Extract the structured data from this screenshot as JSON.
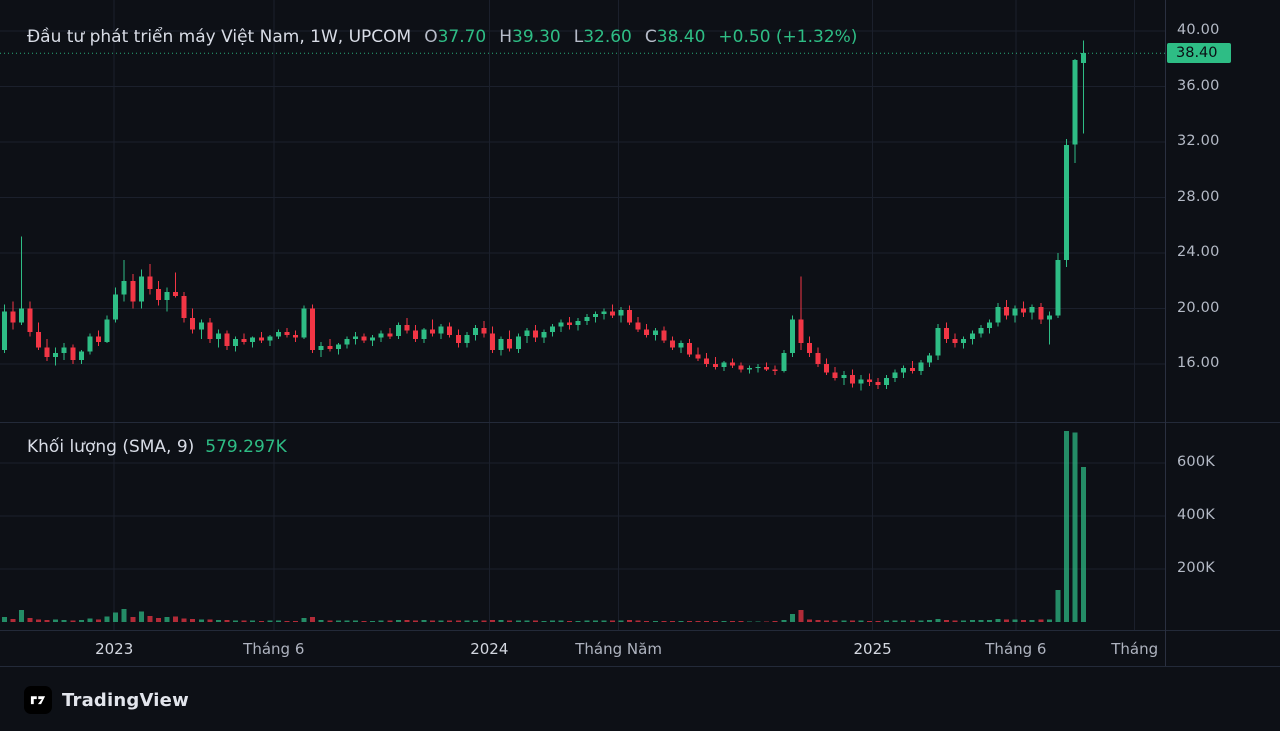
{
  "colors": {
    "up": "#2ebd85",
    "down": "#f23645",
    "grid": "#1b202c",
    "bg": "#0d1016"
  },
  "legend": {
    "title": "Đầu tư phát triển máy Việt Nam, 1W, UPCOM",
    "o_label": "O",
    "o": "37.70",
    "h_label": "H",
    "h": "39.30",
    "l_label": "L",
    "l": "32.60",
    "c_label": "C",
    "c": "38.40",
    "change": "+0.50 (+1.32%)"
  },
  "volume_legend": {
    "label": "Khối lượng (SMA, 9)",
    "value": "579.297K"
  },
  "price_axis": {
    "ticks": [
      "40.00",
      "36.00",
      "32.00",
      "28.00",
      "24.00",
      "20.00",
      "16.00"
    ],
    "last_price_label": "38.40"
  },
  "volume_axis": {
    "ticks": [
      {
        "label": "600K",
        "v": 600
      },
      {
        "label": "400K",
        "v": 400
      },
      {
        "label": "200K",
        "v": 200
      }
    ]
  },
  "time_axis": {
    "ticks": [
      {
        "label": "2023",
        "pos": 0.098,
        "major": true
      },
      {
        "label": "Tháng 6",
        "pos": 0.235,
        "major": false
      },
      {
        "label": "2024",
        "pos": 0.42,
        "major": true
      },
      {
        "label": "Tháng Năm",
        "pos": 0.531,
        "major": false
      },
      {
        "label": "2025",
        "pos": 0.749,
        "major": true
      },
      {
        "label": "Tháng 6",
        "pos": 0.872,
        "major": false
      },
      {
        "label": "Tháng",
        "pos": 0.974,
        "major": false
      }
    ]
  },
  "footer": {
    "brand": "TradingView"
  },
  "chart_data": {
    "type": "candlestick+volume",
    "title": "Đầu tư phát triển máy Việt Nam",
    "interval": "1W",
    "exchange": "UPCOM",
    "ohlc_last": {
      "o": 37.7,
      "h": 39.3,
      "l": 32.6,
      "c": 38.4,
      "change": 0.5,
      "change_pct": 1.32
    },
    "volume_sma_label": "579.297K",
    "price_axis_ticks": [
      40,
      36,
      32,
      28,
      24,
      20,
      16
    ],
    "volume_axis_ticks_k": [
      600,
      400,
      200
    ],
    "price_range": [
      14,
      40.5
    ],
    "volume_unit": "K",
    "right_gap": 9,
    "last_price": 38.4,
    "candles_format": [
      "open",
      "high",
      "low",
      "close",
      "volume_k"
    ],
    "candles": [
      [
        17.0,
        20.3,
        16.8,
        19.8,
        18
      ],
      [
        19.8,
        20.5,
        18.5,
        19.0,
        12
      ],
      [
        19.0,
        25.2,
        18.8,
        20.0,
        45
      ],
      [
        20.0,
        20.5,
        18.0,
        18.3,
        15
      ],
      [
        18.3,
        19.0,
        17.0,
        17.2,
        10
      ],
      [
        17.2,
        17.8,
        16.2,
        16.5,
        8
      ],
      [
        16.5,
        17.2,
        15.9,
        16.8,
        9
      ],
      [
        16.8,
        17.5,
        16.3,
        17.2,
        7
      ],
      [
        17.2,
        17.4,
        16.0,
        16.3,
        6
      ],
      [
        16.3,
        17.0,
        16.0,
        16.9,
        8
      ],
      [
        16.9,
        18.2,
        16.7,
        18.0,
        14
      ],
      [
        18.0,
        18.4,
        17.3,
        17.6,
        9
      ],
      [
        17.6,
        19.5,
        17.5,
        19.2,
        20
      ],
      [
        19.2,
        21.5,
        19.0,
        21.0,
        35
      ],
      [
        21.0,
        23.5,
        20.5,
        22.0,
        50
      ],
      [
        22.0,
        22.5,
        20.0,
        20.5,
        18
      ],
      [
        20.5,
        22.8,
        20.0,
        22.3,
        40
      ],
      [
        22.3,
        23.2,
        21.0,
        21.4,
        22
      ],
      [
        21.4,
        22.0,
        20.2,
        20.6,
        15
      ],
      [
        20.6,
        21.5,
        19.8,
        21.2,
        18
      ],
      [
        21.2,
        22.6,
        20.8,
        20.9,
        20
      ],
      [
        20.9,
        21.2,
        19.0,
        19.3,
        14
      ],
      [
        19.3,
        20.0,
        18.2,
        18.5,
        12
      ],
      [
        18.5,
        19.2,
        17.8,
        19.0,
        10
      ],
      [
        19.0,
        19.3,
        17.5,
        17.8,
        9
      ],
      [
        17.8,
        18.5,
        17.2,
        18.2,
        8
      ],
      [
        18.2,
        18.4,
        17.0,
        17.3,
        7
      ],
      [
        17.3,
        18.0,
        16.9,
        17.8,
        6
      ],
      [
        17.8,
        18.2,
        17.4,
        17.6,
        5
      ],
      [
        17.6,
        18.0,
        17.2,
        17.9,
        5
      ],
      [
        17.9,
        18.3,
        17.5,
        17.7,
        4
      ],
      [
        17.7,
        18.1,
        17.3,
        18.0,
        5
      ],
      [
        18.0,
        18.5,
        17.8,
        18.3,
        6
      ],
      [
        18.3,
        18.6,
        17.9,
        18.1,
        4
      ],
      [
        18.1,
        18.4,
        17.6,
        17.9,
        4
      ],
      [
        17.9,
        20.2,
        17.8,
        20.0,
        16
      ],
      [
        20.0,
        20.3,
        16.8,
        17.0,
        18
      ],
      [
        17.0,
        17.6,
        16.5,
        17.3,
        7
      ],
      [
        17.3,
        17.8,
        16.9,
        17.1,
        5
      ],
      [
        17.1,
        17.5,
        16.7,
        17.4,
        5
      ],
      [
        17.4,
        18.0,
        17.1,
        17.8,
        6
      ],
      [
        17.8,
        18.3,
        17.4,
        18.0,
        5
      ],
      [
        18.0,
        18.2,
        17.5,
        17.7,
        4
      ],
      [
        17.7,
        18.1,
        17.3,
        17.9,
        4
      ],
      [
        17.9,
        18.4,
        17.6,
        18.2,
        5
      ],
      [
        18.2,
        18.6,
        17.8,
        18.0,
        5
      ],
      [
        18.0,
        19.0,
        17.8,
        18.8,
        8
      ],
      [
        18.8,
        19.3,
        18.2,
        18.4,
        7
      ],
      [
        18.4,
        18.8,
        17.6,
        17.8,
        6
      ],
      [
        17.8,
        18.6,
        17.5,
        18.5,
        7
      ],
      [
        18.5,
        19.2,
        18.0,
        18.2,
        6
      ],
      [
        18.2,
        18.9,
        17.8,
        18.7,
        6
      ],
      [
        18.7,
        19.0,
        17.9,
        18.1,
        5
      ],
      [
        18.1,
        18.5,
        17.2,
        17.5,
        6
      ],
      [
        17.5,
        18.3,
        17.2,
        18.1,
        5
      ],
      [
        18.1,
        18.8,
        17.7,
        18.6,
        6
      ],
      [
        18.6,
        19.1,
        17.9,
        18.2,
        5
      ],
      [
        18.2,
        18.7,
        16.8,
        17.0,
        8
      ],
      [
        17.0,
        18.0,
        16.6,
        17.8,
        7
      ],
      [
        17.8,
        18.4,
        16.9,
        17.1,
        6
      ],
      [
        17.1,
        18.2,
        16.8,
        18.0,
        6
      ],
      [
        18.0,
        18.6,
        17.5,
        18.4,
        5
      ],
      [
        18.4,
        18.8,
        17.6,
        17.9,
        5
      ],
      [
        17.9,
        18.5,
        17.5,
        18.3,
        4
      ],
      [
        18.3,
        18.9,
        18.0,
        18.7,
        5
      ],
      [
        18.7,
        19.2,
        18.3,
        19.0,
        5
      ],
      [
        19.0,
        19.4,
        18.5,
        18.8,
        4
      ],
      [
        18.8,
        19.3,
        18.4,
        19.1,
        4
      ],
      [
        19.1,
        19.6,
        18.8,
        19.4,
        5
      ],
      [
        19.4,
        19.8,
        19.0,
        19.6,
        5
      ],
      [
        19.6,
        20.0,
        19.2,
        19.8,
        6
      ],
      [
        19.8,
        20.3,
        19.3,
        19.5,
        6
      ],
      [
        19.5,
        20.1,
        19.0,
        19.9,
        5
      ],
      [
        19.9,
        20.2,
        18.8,
        19.0,
        7
      ],
      [
        19.0,
        19.4,
        18.3,
        18.5,
        5
      ],
      [
        18.5,
        18.9,
        17.9,
        18.1,
        4
      ],
      [
        18.1,
        18.6,
        17.7,
        18.4,
        4
      ],
      [
        18.4,
        18.7,
        17.5,
        17.7,
        4
      ],
      [
        17.7,
        18.0,
        17.0,
        17.2,
        4
      ],
      [
        17.2,
        17.7,
        16.8,
        17.5,
        3
      ],
      [
        17.5,
        17.8,
        16.5,
        16.7,
        4
      ],
      [
        16.7,
        17.2,
        16.2,
        16.4,
        3
      ],
      [
        16.4,
        16.8,
        15.8,
        16.0,
        4
      ],
      [
        16.0,
        16.5,
        15.6,
        15.8,
        3
      ],
      [
        15.8,
        16.2,
        15.5,
        16.1,
        3
      ],
      [
        16.1,
        16.4,
        15.7,
        15.9,
        3
      ],
      [
        15.9,
        16.1,
        15.4,
        15.6,
        3
      ],
      [
        15.6,
        15.9,
        15.3,
        15.7,
        2
      ],
      [
        15.7,
        16.0,
        15.4,
        15.8,
        2
      ],
      [
        15.8,
        16.1,
        15.5,
        15.6,
        2
      ],
      [
        15.6,
        15.9,
        15.2,
        15.5,
        3
      ],
      [
        15.5,
        17.0,
        15.4,
        16.8,
        8
      ],
      [
        16.8,
        19.5,
        16.5,
        19.2,
        30
      ],
      [
        19.2,
        22.3,
        17.0,
        17.5,
        45
      ],
      [
        17.5,
        18.0,
        16.5,
        16.8,
        10
      ],
      [
        16.8,
        17.2,
        15.8,
        16.0,
        8
      ],
      [
        16.0,
        16.4,
        15.2,
        15.4,
        6
      ],
      [
        15.4,
        15.8,
        14.8,
        15.0,
        5
      ],
      [
        15.0,
        15.5,
        14.5,
        15.2,
        5
      ],
      [
        15.2,
        15.6,
        14.3,
        14.6,
        6
      ],
      [
        14.6,
        15.2,
        14.1,
        14.9,
        5
      ],
      [
        14.9,
        15.3,
        14.4,
        14.7,
        4
      ],
      [
        14.7,
        15.0,
        14.2,
        14.5,
        4
      ],
      [
        14.5,
        15.2,
        14.2,
        15.0,
        5
      ],
      [
        15.0,
        15.6,
        14.7,
        15.4,
        5
      ],
      [
        15.4,
        15.9,
        15.0,
        15.7,
        6
      ],
      [
        15.7,
        16.2,
        15.3,
        15.5,
        5
      ],
      [
        15.5,
        16.3,
        15.2,
        16.1,
        6
      ],
      [
        16.1,
        16.8,
        15.8,
        16.6,
        7
      ],
      [
        16.6,
        18.9,
        16.3,
        18.6,
        12
      ],
      [
        18.6,
        19.0,
        17.5,
        17.8,
        8
      ],
      [
        17.8,
        18.2,
        17.2,
        17.5,
        6
      ],
      [
        17.5,
        18.0,
        17.1,
        17.8,
        6
      ],
      [
        17.8,
        18.4,
        17.4,
        18.2,
        7
      ],
      [
        18.2,
        18.8,
        17.9,
        18.6,
        7
      ],
      [
        18.6,
        19.2,
        18.2,
        19.0,
        8
      ],
      [
        19.0,
        20.4,
        18.7,
        20.1,
        12
      ],
      [
        20.1,
        20.6,
        19.2,
        19.5,
        10
      ],
      [
        19.5,
        20.2,
        19.0,
        20.0,
        9
      ],
      [
        20.0,
        20.5,
        19.4,
        19.7,
        8
      ],
      [
        19.7,
        20.3,
        19.2,
        20.1,
        8
      ],
      [
        20.1,
        20.4,
        18.9,
        19.2,
        9
      ],
      [
        19.2,
        19.8,
        17.4,
        19.5,
        10
      ],
      [
        19.5,
        24.0,
        19.3,
        23.5,
        120
      ],
      [
        23.5,
        32.2,
        23.0,
        31.8,
        720
      ],
      [
        31.8,
        38.0,
        30.5,
        37.9,
        715
      ],
      [
        37.7,
        39.3,
        32.6,
        38.4,
        585
      ]
    ]
  }
}
